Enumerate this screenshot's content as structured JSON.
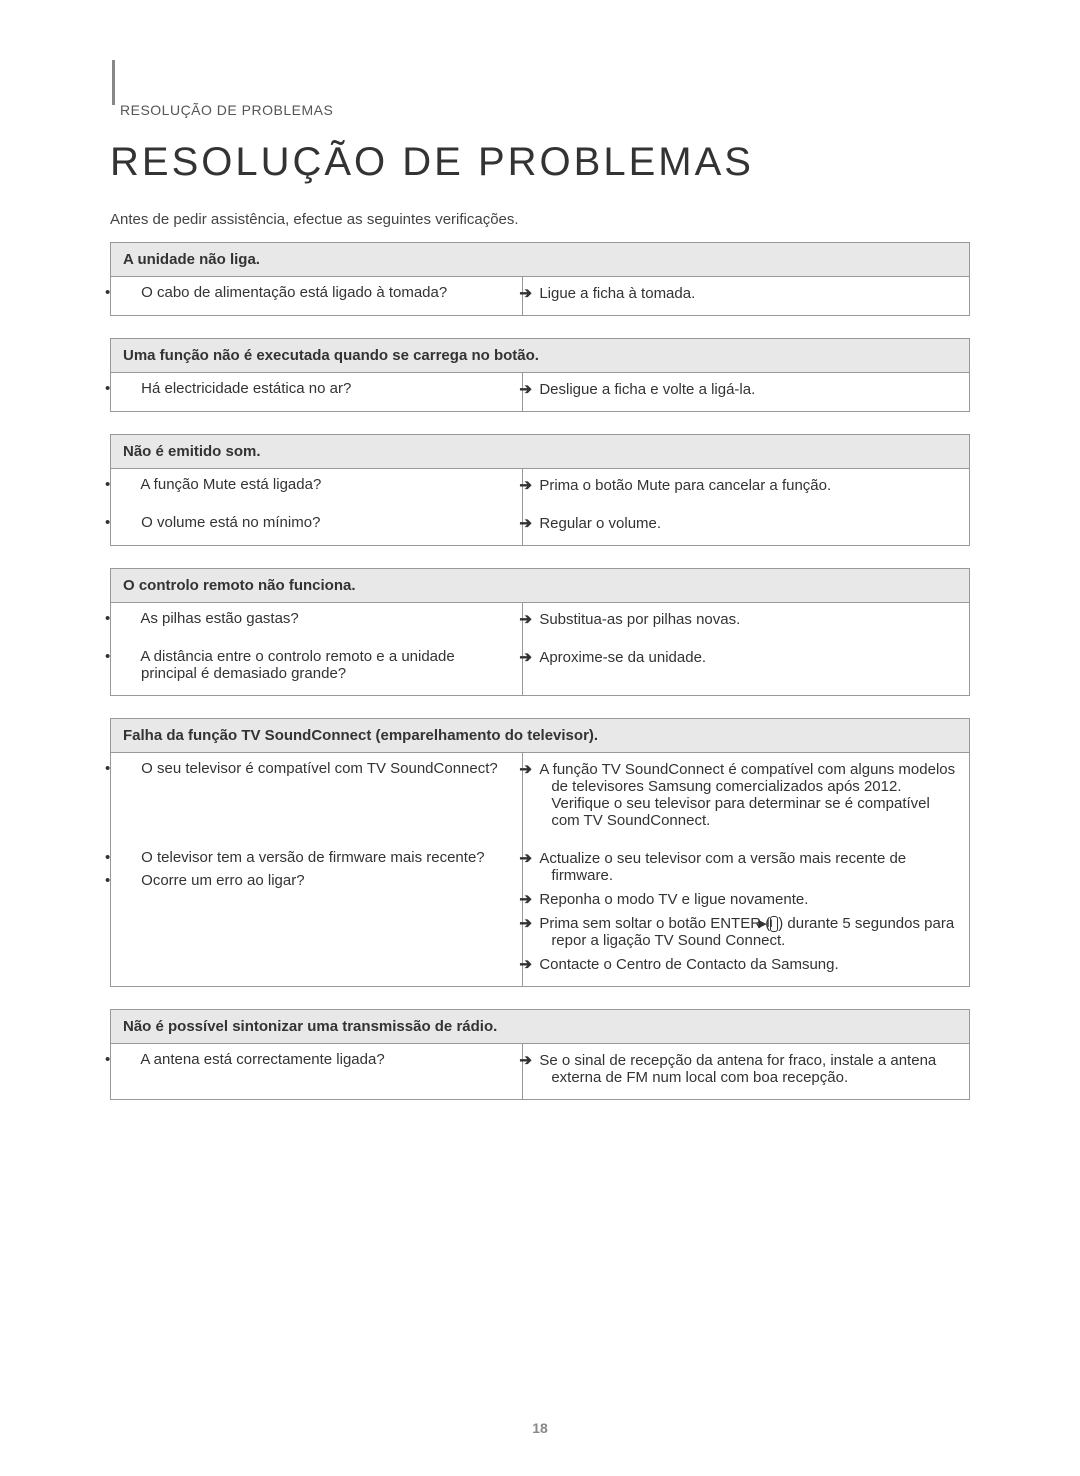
{
  "breadcrumb": "Resolução de Problemas",
  "main_title": "Resolução de Problemas",
  "intro": "Antes de pedir assistência, efectue as seguintes verificações.",
  "page_number": "18",
  "tables": [
    {
      "header": "A unidade não liga.",
      "rows": [
        {
          "checks": [
            "O cabo de alimentação está ligado à tomada?"
          ],
          "solutions": [
            "Ligue a ficha à tomada."
          ]
        }
      ]
    },
    {
      "header": "Uma função não é executada quando se carrega no botão.",
      "rows": [
        {
          "checks": [
            "Há electricidade estática no ar?"
          ],
          "solutions": [
            "Desligue a ficha e volte a ligá-la."
          ]
        }
      ]
    },
    {
      "header": "Não é emitido som.",
      "rows": [
        {
          "checks": [
            "A função Mute está ligada?"
          ],
          "solutions": [
            "Prima o botão Mute para cancelar a função."
          ]
        },
        {
          "checks": [
            "O volume está no mínimo?"
          ],
          "solutions": [
            "Regular o volume."
          ]
        }
      ]
    },
    {
      "header": "O controlo remoto não funciona.",
      "rows": [
        {
          "checks": [
            "As pilhas estão gastas?"
          ],
          "solutions": [
            "Substitua-as por pilhas novas."
          ]
        },
        {
          "checks": [
            "A distância entre o controlo remoto e a unidade principal é demasiado grande?"
          ],
          "solutions": [
            "Aproxime-se da unidade."
          ]
        }
      ]
    },
    {
      "header": "Falha da função TV SoundConnect (emparelhamento do televisor).",
      "rows": [
        {
          "checks": [
            "O seu televisor é compatível com TV SoundConnect?"
          ],
          "solutions": [
            "A função TV SoundConnect é compatível com alguns modelos de televisores Samsung comercializados após 2012. Verifique o seu televisor para determinar se é compatível com TV SoundConnect."
          ]
        },
        {
          "checks": [
            "O televisor tem a versão de firmware mais recente?",
            "Ocorre um erro ao ligar?"
          ],
          "solutions": [
            "Actualize o seu televisor com a versão mais recente de firmware.",
            "Reponha o modo TV e ligue novamente.",
            "__ENTER__",
            "Contacte o Centro de Contacto da Samsung."
          ]
        }
      ]
    },
    {
      "header": "Não é possível sintonizar uma transmissão de rádio.",
      "rows": [
        {
          "checks": [
            "A antena está correctamente ligada?"
          ],
          "solutions": [
            "Se o sinal de recepção da antena for fraco, instale a antena externa de FM num local com boa recepção."
          ]
        }
      ]
    }
  ],
  "enter_text_before": "Prima sem soltar o botão ENTER (",
  "enter_text_after": ") durante 5 segundos para repor a ligação TV Sound Connect.",
  "enter_icon_label": "▶II"
}
